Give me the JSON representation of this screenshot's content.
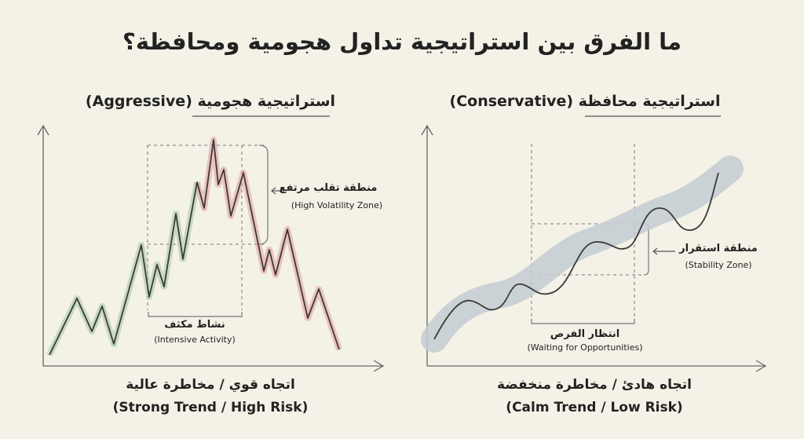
{
  "title": "ما الفرق بين استراتيجية تداول هجومية ومحافظة؟",
  "aggressive": {
    "heading": "استراتيجية هجومية (Aggressive)",
    "zone_ar": "منطقة تقلب مرتفع",
    "zone_en": "(High Volatility Zone)",
    "activity_ar": "نشاط مكثف",
    "activity_en": "(Intensive Activity)",
    "caption_ar": "اتجاه قوي / مخاطرة عالية",
    "caption_en": "(Strong Trend / High Risk)",
    "colors": {
      "rising": "#a9c9a8",
      "peak": "#e8b3a6",
      "falling": "#e3a3a3",
      "line": "#3a3a3a"
    }
  },
  "conservative": {
    "heading": "استراتيجية محافظة (Conservative)",
    "zone_ar": "منطقة استقرار",
    "zone_en": "(Stability Zone)",
    "waiting_ar": "انتظار الفرص",
    "waiting_en": "(Waiting for Opportunities)",
    "caption_ar": "اتجاه هادئ / مخاطرة منخفضة",
    "caption_en": "(Calm Trend / Low Risk)",
    "colors": {
      "band": "#c3ccd2",
      "line": "#3a3a3a"
    }
  }
}
